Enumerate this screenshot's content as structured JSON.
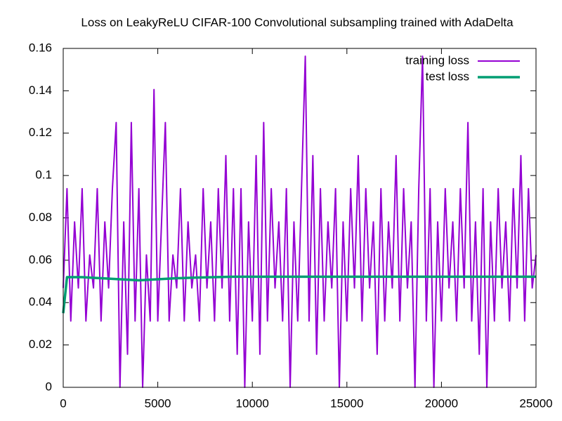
{
  "chart_data": {
    "type": "line",
    "title": "Loss on LeakyReLU CIFAR-100 Convolutional subsampling trained with AdaDelta",
    "xlim": [
      0,
      25000
    ],
    "xticks": [
      0,
      5000,
      10000,
      15000,
      20000,
      25000
    ],
    "ylim": [
      0,
      0.16
    ],
    "yticks": [
      0,
      0.02,
      0.04,
      0.06,
      0.08,
      0.1,
      0.12,
      0.14,
      0.16
    ],
    "legend": "top-right",
    "series": [
      {
        "name": "training loss",
        "color": "#9400d3",
        "x": [
          0,
          200,
          400,
          600,
          800,
          1000,
          1200,
          1400,
          1600,
          1800,
          2000,
          2200,
          2400,
          2600,
          2800,
          3000,
          3200,
          3400,
          3600,
          3800,
          4000,
          4200,
          4400,
          4600,
          4800,
          5000,
          5200,
          5400,
          5600,
          5800,
          6000,
          6200,
          6400,
          6600,
          6800,
          7000,
          7200,
          7400,
          7600,
          7800,
          8000,
          8200,
          8400,
          8600,
          8800,
          9000,
          9200,
          9400,
          9600,
          9800,
          10000,
          10200,
          10400,
          10600,
          10800,
          11000,
          11200,
          11400,
          11600,
          11800,
          12000,
          12200,
          12400,
          12600,
          12800,
          13000,
          13200,
          13400,
          13600,
          13800,
          14000,
          14200,
          14400,
          14600,
          14800,
          15000,
          15200,
          15400,
          15600,
          15800,
          16000,
          16200,
          16400,
          16600,
          16800,
          17000,
          17200,
          17400,
          17600,
          17800,
          18000,
          18200,
          18400,
          18600,
          18800,
          19000,
          19200,
          19400,
          19600,
          19800,
          20000,
          20200,
          20400,
          20600,
          20800,
          21000,
          21200,
          21400,
          21600,
          21800,
          22000,
          22200,
          22400,
          22600,
          22800,
          23000,
          23200,
          23400,
          23600,
          23800,
          24000,
          24200,
          24400,
          24600,
          24800,
          25000
        ],
        "values": [
          0.0469,
          0.0938,
          0.0313,
          0.0781,
          0.0469,
          0.0938,
          0.0313,
          0.0625,
          0.0469,
          0.0938,
          0.0313,
          0.0781,
          0.0469,
          0.0938,
          0.125,
          0,
          0.0781,
          0.0156,
          0.125,
          0.0313,
          0.0938,
          0,
          0.0625,
          0.0313,
          0.1406,
          0.0313,
          0.0781,
          0.125,
          0.0313,
          0.0625,
          0.0469,
          0.0938,
          0.0313,
          0.0781,
          0.0469,
          0.0625,
          0.0313,
          0.0938,
          0.0469,
          0.0781,
          0.0313,
          0.0938,
          0.0469,
          0.1094,
          0.0313,
          0.0938,
          0.0156,
          0.0938,
          0,
          0.0781,
          0.0313,
          0.1094,
          0.0156,
          0.125,
          0.0313,
          0.0938,
          0.0469,
          0.0781,
          0.0313,
          0.0938,
          0,
          0.0781,
          0.0313,
          0.0938,
          0.1563,
          0.0313,
          0.1094,
          0.0156,
          0.0938,
          0.0313,
          0.0781,
          0.0469,
          0.0938,
          0,
          0.0781,
          0.0313,
          0.0938,
          0.0469,
          0.1094,
          0.0313,
          0.0938,
          0.0469,
          0.0781,
          0.0156,
          0.0938,
          0.0313,
          0.0781,
          0.0469,
          0.1094,
          0.0313,
          0.0938,
          0.0469,
          0.0781,
          0,
          0.0938,
          0.1563,
          0.0313,
          0.0938,
          0,
          0.0781,
          0.0313,
          0.0938,
          0.0469,
          0.0781,
          0.0313,
          0.0938,
          0.0469,
          0.125,
          0.0313,
          0.0781,
          0.0156,
          0.0938,
          0,
          0.0781,
          0.0313,
          0.0938,
          0.0469,
          0.0781,
          0.0313,
          0.0938,
          0.0469,
          0.1094,
          0.0313,
          0.0938,
          0.0469,
          0.0625
        ]
      },
      {
        "name": "test loss",
        "color": "#009e73",
        "x": [
          0,
          200,
          500,
          1000,
          2000,
          3000,
          4000,
          5000,
          6000,
          7000,
          8000,
          9000,
          10000,
          11000,
          12000,
          13000,
          14000,
          15000,
          16000,
          17000,
          18000,
          19000,
          20000,
          21000,
          22000,
          23000,
          24000,
          25000
        ],
        "values": [
          0.035,
          0.052,
          0.052,
          0.052,
          0.0515,
          0.051,
          0.0505,
          0.051,
          0.0515,
          0.0518,
          0.052,
          0.0522,
          0.0522,
          0.0522,
          0.0522,
          0.0522,
          0.0522,
          0.0522,
          0.0522,
          0.0522,
          0.0522,
          0.0522,
          0.0522,
          0.0522,
          0.0522,
          0.0522,
          0.0522,
          0.0522
        ]
      }
    ]
  }
}
